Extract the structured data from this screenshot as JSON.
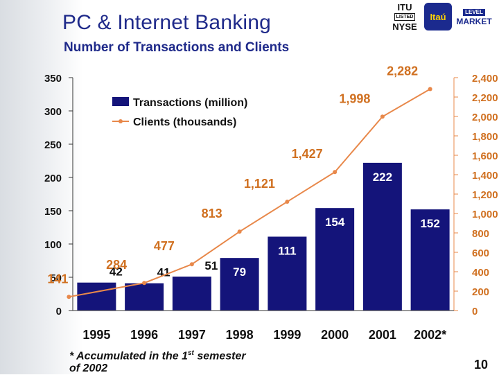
{
  "header": {
    "title": "PC & Internet Banking",
    "subtitle": "Number of Transactions and Clients"
  },
  "logos": {
    "nyse_top": "ITU",
    "nyse_listed": "LISTED",
    "nyse_bottom": "NYSE",
    "itau": "Itaú",
    "market_level": "LEVEL",
    "market": "MARKET"
  },
  "footnote": {
    "line1_pre": "* Accumulated in the 1",
    "line1_sup": "st",
    "line1_post": " semester",
    "line2": "of 2002"
  },
  "page_number": "10",
  "colors": {
    "bar": "#14147a",
    "line": "#e8884a",
    "line_label": "#d07020",
    "title": "#1f2a8a"
  },
  "chart_data": {
    "type": "bar",
    "categories": [
      "1995",
      "1996",
      "1997",
      "1998",
      "1999",
      "2000",
      "2001",
      "2002*"
    ],
    "series": [
      {
        "name": "Transactions (million)",
        "type": "bar",
        "axis": "left",
        "values": [
          42,
          41,
          51,
          79,
          111,
          154,
          222,
          152
        ],
        "labels": [
          "42",
          "41",
          "51",
          "79",
          "111",
          "154",
          "222",
          "152"
        ]
      },
      {
        "name": "Clients (thousands)",
        "type": "line",
        "axis": "right",
        "values": [
          141,
          284,
          477,
          813,
          1121,
          1427,
          1998,
          2282
        ],
        "labels": [
          "141",
          "284",
          "477",
          "813",
          "1,121",
          "1,427",
          "1,998",
          "2,282"
        ]
      }
    ],
    "y_left": {
      "lim": [
        0,
        350
      ],
      "ticks": [
        0,
        50,
        100,
        150,
        200,
        250,
        300,
        350
      ],
      "tick_labels": [
        "0",
        "50",
        "100",
        "150",
        "200",
        "250",
        "300",
        "350"
      ]
    },
    "y_right": {
      "lim": [
        0,
        2400
      ],
      "ticks": [
        0,
        200,
        400,
        600,
        800,
        1000,
        1200,
        1400,
        1600,
        1800,
        2000,
        2200,
        2400
      ],
      "tick_labels": [
        "0",
        "200",
        "400",
        "600",
        "800",
        "1,000",
        "1,200",
        "1,400",
        "1,600",
        "1,800",
        "2,000",
        "2,200",
        "2,400"
      ]
    },
    "legend_position": "top-left",
    "grid": false
  }
}
